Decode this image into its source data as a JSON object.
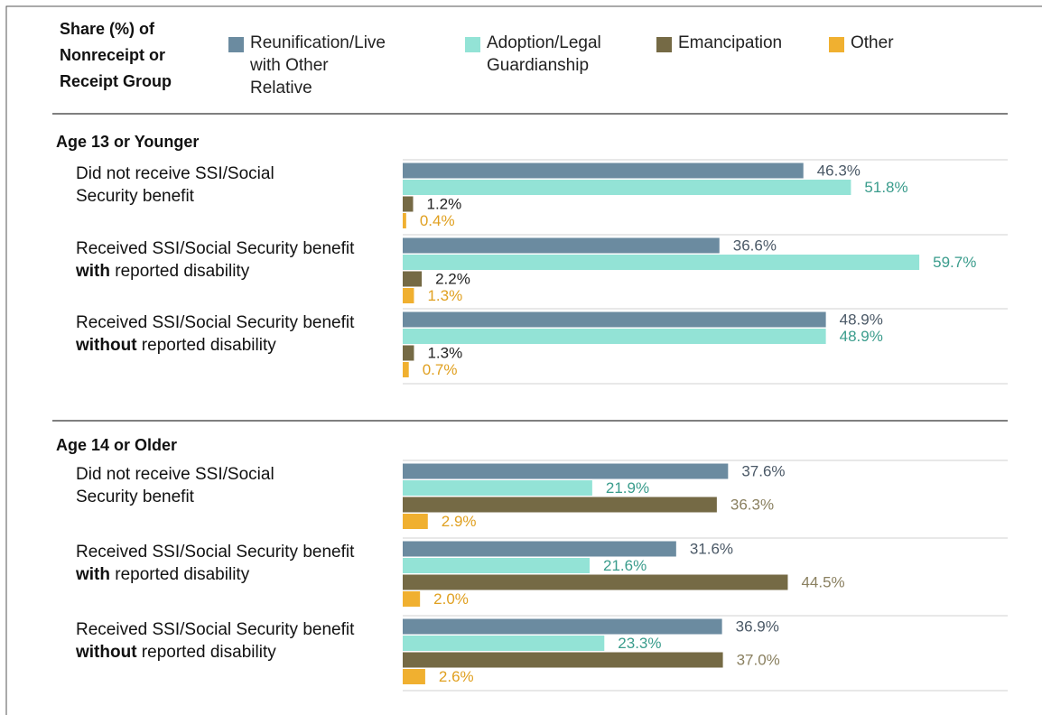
{
  "chart_data": {
    "type": "bar",
    "legend_title": "Share (%) of\nNonreceipt or\nReceipt Group",
    "xlim": [
      0,
      60
    ],
    "series": [
      {
        "name": "Reunification/Live\nwith Other Relative",
        "color": "#6b8ba0"
      },
      {
        "name": "Adoption/Legal\nGuardianship",
        "color": "#93e3d6"
      },
      {
        "name": "Emancipation",
        "color": "#756a45"
      },
      {
        "name": "Other",
        "color": "#f0b030"
      }
    ],
    "panels": [
      {
        "title": "Age 13 or Younger",
        "categories": [
          {
            "lines": [
              [
                {
                  "text": "Did not receive SSI/Social",
                  "bold": false
                }
              ],
              [
                {
                  "text": "Security benefit",
                  "bold": false
                }
              ]
            ]
          },
          {
            "lines": [
              [
                {
                  "text": "Received SSI/Social Security benefit",
                  "bold": false
                }
              ],
              [
                {
                  "text": "with",
                  "bold": true
                },
                {
                  "text": " reported disability",
                  "bold": false
                }
              ]
            ]
          },
          {
            "lines": [
              [
                {
                  "text": "Received SSI/Social Security benefit",
                  "bold": false
                }
              ],
              [
                {
                  "text": "without",
                  "bold": true
                },
                {
                  "text": " reported disability",
                  "bold": false
                }
              ]
            ]
          }
        ],
        "series": [
          {
            "values": [
              46.3,
              36.6,
              48.9
            ],
            "value_labels": [
              "46.3%",
              "36.6%",
              "48.9%"
            ],
            "label_color": "#4a5866"
          },
          {
            "values": [
              51.8,
              59.7,
              48.9
            ],
            "value_labels": [
              "51.8%",
              "59.7%",
              "48.9%"
            ],
            "label_color": "#3a9c8c"
          },
          {
            "values": [
              1.2,
              2.2,
              1.3
            ],
            "value_labels": [
              "1.2%",
              "2.2%",
              "1.3%"
            ],
            "label_color": "#222222"
          },
          {
            "values": [
              0.4,
              1.3,
              0.7
            ],
            "value_labels": [
              "0.4%",
              "1.3%",
              "0.7%"
            ],
            "label_color": "#e0a020"
          }
        ]
      },
      {
        "title": "Age 14 or Older",
        "categories": [
          {
            "lines": [
              [
                {
                  "text": "Did not receive SSI/Social",
                  "bold": false
                }
              ],
              [
                {
                  "text": "Security benefit",
                  "bold": false
                }
              ]
            ]
          },
          {
            "lines": [
              [
                {
                  "text": "Received SSI/Social Security benefit",
                  "bold": false
                }
              ],
              [
                {
                  "text": "with",
                  "bold": true
                },
                {
                  "text": " reported disability",
                  "bold": false
                }
              ]
            ]
          },
          {
            "lines": [
              [
                {
                  "text": "Received SSI/Social Security benefit",
                  "bold": false
                }
              ],
              [
                {
                  "text": "without",
                  "bold": true
                },
                {
                  "text": " reported disability",
                  "bold": false
                }
              ]
            ]
          }
        ],
        "series": [
          {
            "values": [
              37.6,
              31.6,
              36.9
            ],
            "value_labels": [
              "37.6%",
              "31.6%",
              "36.9%"
            ],
            "label_color": "#4a5866"
          },
          {
            "values": [
              21.9,
              21.6,
              23.3
            ],
            "value_labels": [
              "21.9%",
              "21.6%",
              "23.3%"
            ],
            "label_color": "#3a9c8c"
          },
          {
            "values": [
              36.3,
              44.5,
              37.0
            ],
            "value_labels": [
              "36.3%",
              "44.5%",
              "37.0%"
            ],
            "label_color": "#8a8060"
          },
          {
            "values": [
              2.9,
              2.0,
              2.6
            ],
            "value_labels": [
              "2.9%",
              "2.0%",
              "2.6%"
            ],
            "label_color": "#e0a020"
          }
        ]
      }
    ]
  }
}
